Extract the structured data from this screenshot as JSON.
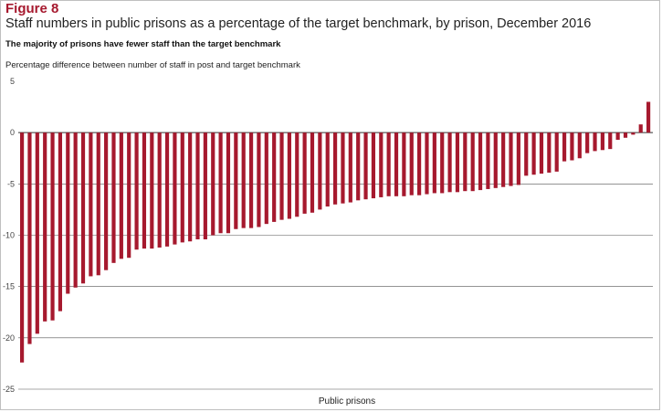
{
  "figure_label": "Figure 8",
  "chart_data": {
    "type": "bar",
    "title": "Staff numbers in public prisons as a percentage of the target benchmark, by prison, December 2016",
    "subtitle": "The majority of prisons have fewer staff than the target benchmark",
    "ylabel": "Percentage difference between number of staff in post and target benchmark",
    "xlabel": "Public prisons",
    "ylim": [
      -25,
      5
    ],
    "yticks": [
      5,
      0,
      -5,
      -10,
      -15,
      -20,
      -25
    ],
    "grid": true,
    "bar_color": "#a6192e",
    "gridline_color": "#555555",
    "values": [
      -22.4,
      -20.6,
      -19.6,
      -18.4,
      -18.3,
      -17.4,
      -15.7,
      -15.1,
      -14.7,
      -14.0,
      -13.9,
      -13.4,
      -12.7,
      -12.3,
      -12.2,
      -11.4,
      -11.3,
      -11.3,
      -11.2,
      -11.1,
      -10.9,
      -10.7,
      -10.6,
      -10.4,
      -10.4,
      -10.0,
      -9.8,
      -9.8,
      -9.4,
      -9.3,
      -9.3,
      -9.2,
      -8.9,
      -8.7,
      -8.5,
      -8.4,
      -8.2,
      -7.9,
      -7.8,
      -7.5,
      -7.2,
      -7.0,
      -6.9,
      -6.8,
      -6.6,
      -6.5,
      -6.4,
      -6.3,
      -6.2,
      -6.2,
      -6.2,
      -6.1,
      -6.1,
      -6.0,
      -5.9,
      -5.9,
      -5.8,
      -5.8,
      -5.7,
      -5.7,
      -5.6,
      -5.5,
      -5.4,
      -5.3,
      -5.2,
      -5.1,
      -4.2,
      -4.1,
      -4.0,
      -3.9,
      -3.8,
      -2.8,
      -2.7,
      -2.5,
      -2.0,
      -1.8,
      -1.7,
      -1.6,
      -0.7,
      -0.5,
      -0.2,
      0.8,
      3.0
    ]
  }
}
